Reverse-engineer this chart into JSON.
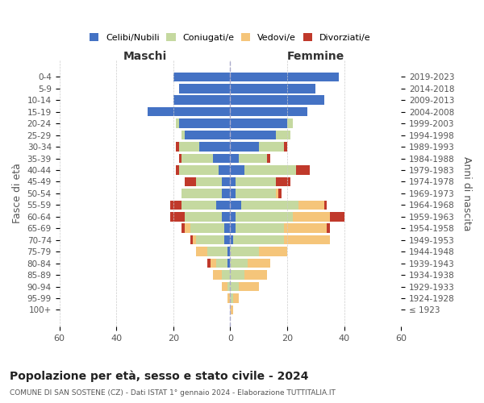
{
  "age_groups": [
    "100+",
    "95-99",
    "90-94",
    "85-89",
    "80-84",
    "75-79",
    "70-74",
    "65-69",
    "60-64",
    "55-59",
    "50-54",
    "45-49",
    "40-44",
    "35-39",
    "30-34",
    "25-29",
    "20-24",
    "15-19",
    "10-14",
    "5-9",
    "0-4"
  ],
  "birth_years": [
    "≤ 1923",
    "1924-1928",
    "1929-1933",
    "1934-1938",
    "1939-1943",
    "1944-1948",
    "1949-1953",
    "1954-1958",
    "1959-1963",
    "1964-1968",
    "1969-1973",
    "1974-1978",
    "1979-1983",
    "1984-1988",
    "1989-1993",
    "1994-1998",
    "1999-2003",
    "2004-2008",
    "2009-2013",
    "2014-2018",
    "2019-2023"
  ],
  "males": {
    "celibi": [
      0,
      0,
      0,
      0,
      1,
      1,
      2,
      2,
      3,
      5,
      3,
      3,
      4,
      6,
      11,
      16,
      18,
      29,
      20,
      18,
      20
    ],
    "coniugati": [
      0,
      0,
      1,
      3,
      4,
      7,
      10,
      12,
      13,
      12,
      14,
      9,
      14,
      11,
      7,
      1,
      1,
      0,
      0,
      0,
      0
    ],
    "vedovi": [
      0,
      1,
      2,
      3,
      2,
      4,
      1,
      2,
      0,
      0,
      0,
      0,
      0,
      0,
      0,
      0,
      0,
      0,
      0,
      0,
      0
    ],
    "divorziati": [
      0,
      0,
      0,
      0,
      1,
      0,
      1,
      1,
      5,
      4,
      0,
      4,
      1,
      1,
      1,
      0,
      0,
      0,
      0,
      0,
      0
    ]
  },
  "females": {
    "nubili": [
      0,
      0,
      0,
      0,
      0,
      0,
      1,
      2,
      2,
      4,
      2,
      2,
      5,
      3,
      10,
      16,
      20,
      27,
      33,
      30,
      38
    ],
    "coniugate": [
      0,
      1,
      3,
      5,
      6,
      10,
      18,
      17,
      20,
      20,
      14,
      14,
      18,
      10,
      9,
      5,
      2,
      0,
      0,
      0,
      0
    ],
    "vedove": [
      1,
      2,
      7,
      8,
      8,
      10,
      16,
      15,
      13,
      9,
      1,
      0,
      0,
      0,
      0,
      0,
      0,
      0,
      0,
      0,
      0
    ],
    "divorziate": [
      0,
      0,
      0,
      0,
      0,
      0,
      0,
      1,
      5,
      1,
      1,
      5,
      5,
      1,
      1,
      0,
      0,
      0,
      0,
      0,
      0
    ]
  },
  "color_celibi": "#4472c4",
  "color_coniugati": "#c5d9a0",
  "color_vedovi": "#f5c57a",
  "color_divorziati": "#c0392b",
  "title": "Popolazione per età, sesso e stato civile - 2024",
  "subtitle": "COMUNE DI SAN SOSTENE (CZ) - Dati ISTAT 1° gennaio 2024 - Elaborazione TUTTITALIA.IT",
  "xlabel_left": "Maschi",
  "xlabel_right": "Femmine",
  "ylabel_left": "Fasce di età",
  "ylabel_right": "Anni di nascita",
  "xlim": 60,
  "background_color": "#ffffff",
  "grid_color": "#cccccc"
}
